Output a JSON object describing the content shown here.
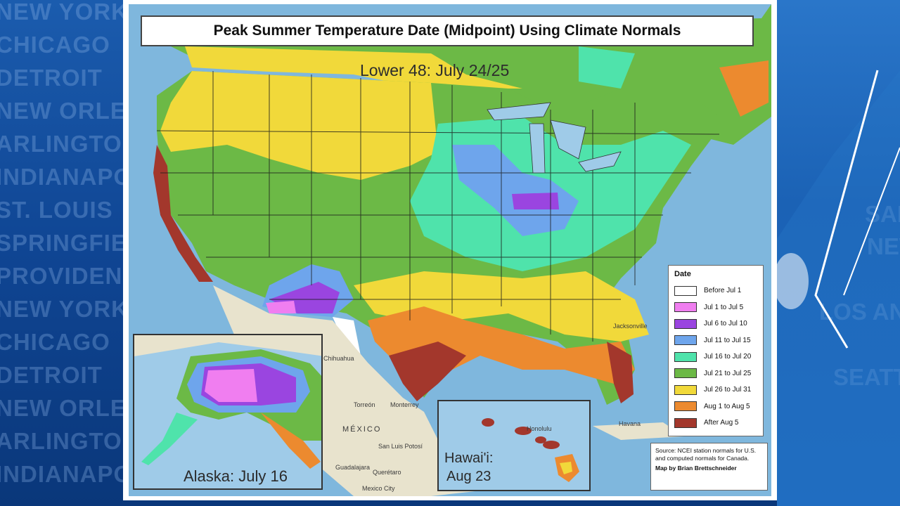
{
  "title": "Peak Summer Temperature Date (Midpoint) Using Climate Normals",
  "lower48_label": "Lower 48: July 24/25",
  "alaska_label": "Alaska: July 16",
  "hawaii_label_line1": "Hawai'i:",
  "hawaii_label_line2": "Aug 23",
  "legend": {
    "title": "Date",
    "items": [
      {
        "label": "Before Jul 1",
        "color": "#ffffff"
      },
      {
        "label": "Jul 1 to Jul 5",
        "color": "#f07ef0"
      },
      {
        "label": "Jul 6 to Jul 10",
        "color": "#9a45e0"
      },
      {
        "label": "Jul 11 to Jul 15",
        "color": "#6ea5ec"
      },
      {
        "label": "Jul 16 to Jul 20",
        "color": "#4fe3ab"
      },
      {
        "label": "Jul 21 to Jul 25",
        "color": "#6cb946"
      },
      {
        "label": "Jul 26 to Jul 31",
        "color": "#f1d93a"
      },
      {
        "label": "Aug 1 to Aug 5",
        "color": "#ec8a2f"
      },
      {
        "label": "After Aug 5",
        "color": "#a3372c"
      }
    ]
  },
  "source": {
    "text": "Source: NCEI station normals for U.S. and computed normals for Canada.",
    "credit": "Map by Brian Brettschneider"
  },
  "places": {
    "mexico": "MÉXICO",
    "honolulu": "Honolulu",
    "chihuahua": "Chihuahua",
    "torreon": "Torreón",
    "monterrey": "Monterrey",
    "san_luis": "San Luis Potosí",
    "guadalajara": "Guadalajara",
    "queretaro": "Querétaro",
    "mexico_city": "Mexico City",
    "havana": "Havana",
    "jacksonville": "Jacksonville"
  },
  "background_cities_left": [
    "NEW YORK",
    "CHICAGO",
    "DETROIT",
    "NEW ORLEANS",
    "ARLINGTON",
    "INDIANAPOLIS",
    "ST. LOUIS",
    "SPRINGFIELD",
    "PROVIDENCE",
    "NEW YORK",
    "CHICAGO",
    "DETROIT",
    "NEW ORLEANS",
    "ARLINGTON",
    "INDIANAPOLIS"
  ],
  "background_cities_right": [
    "SAN",
    "NEW",
    "LOS ANGELES",
    "SEATTLE"
  ],
  "colors": {
    "ocean": "#7fb7dd",
    "canada_green": "#6cb946",
    "mexico_land": "#e8e3cd"
  }
}
